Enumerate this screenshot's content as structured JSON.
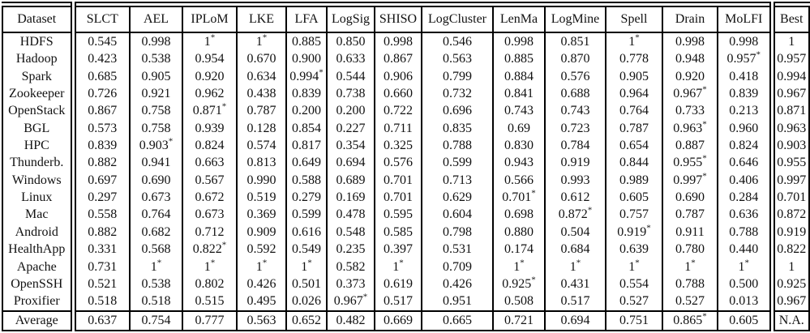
{
  "table": {
    "star_symbol": "*",
    "columns": [
      "Dataset",
      "SLCT",
      "AEL",
      "IPLoM",
      "LKE",
      "LFA",
      "LogSig",
      "SHISO",
      "LogCluster",
      "LenMa",
      "LogMine",
      "Spell",
      "Drain",
      "MoLFI",
      "Best"
    ],
    "rows": [
      {
        "label": "HDFS",
        "cells": [
          [
            "0.545",
            ""
          ],
          [
            "0.998",
            "b"
          ],
          [
            "1",
            "b*"
          ],
          [
            "1",
            "b*"
          ],
          [
            "0.885",
            ""
          ],
          [
            "0.850",
            ""
          ],
          [
            "0.998",
            "b"
          ],
          [
            "0.546",
            ""
          ],
          [
            "0.998",
            "b"
          ],
          [
            "0.851",
            ""
          ],
          [
            "1",
            "b*"
          ],
          [
            "0.998",
            "b"
          ],
          [
            "0.998",
            "b"
          ],
          [
            "1",
            "b"
          ]
        ]
      },
      {
        "label": "Hadoop",
        "cells": [
          [
            "0.423",
            ""
          ],
          [
            "0.538",
            ""
          ],
          [
            "0.954",
            "b"
          ],
          [
            "0.670",
            ""
          ],
          [
            "0.900",
            "b"
          ],
          [
            "0.633",
            ""
          ],
          [
            "0.867",
            ""
          ],
          [
            "0.563",
            ""
          ],
          [
            "0.885",
            ""
          ],
          [
            "0.870",
            ""
          ],
          [
            "0.778",
            ""
          ],
          [
            "0.948",
            "b"
          ],
          [
            "0.957",
            "b*"
          ],
          [
            "0.957",
            "b"
          ]
        ]
      },
      {
        "label": "Spark",
        "cells": [
          [
            "0.685",
            ""
          ],
          [
            "0.905",
            "b"
          ],
          [
            "0.920",
            "b"
          ],
          [
            "0.634",
            ""
          ],
          [
            "0.994",
            "b*"
          ],
          [
            "0.544",
            ""
          ],
          [
            "0.906",
            "b"
          ],
          [
            "0.799",
            ""
          ],
          [
            "0.884",
            ""
          ],
          [
            "0.576",
            ""
          ],
          [
            "0.905",
            "b"
          ],
          [
            "0.920",
            "b"
          ],
          [
            "0.418",
            ""
          ],
          [
            "0.994",
            "b"
          ]
        ]
      },
      {
        "label": "Zookeeper",
        "cells": [
          [
            "0.726",
            ""
          ],
          [
            "0.921",
            "b"
          ],
          [
            "0.962",
            "b"
          ],
          [
            "0.438",
            ""
          ],
          [
            "0.839",
            ""
          ],
          [
            "0.738",
            ""
          ],
          [
            "0.660",
            ""
          ],
          [
            "0.732",
            ""
          ],
          [
            "0.841",
            ""
          ],
          [
            "0.688",
            ""
          ],
          [
            "0.964",
            "b"
          ],
          [
            "0.967",
            "b*"
          ],
          [
            "0.839",
            ""
          ],
          [
            "0.967",
            "b"
          ]
        ]
      },
      {
        "label": "OpenStack",
        "cells": [
          [
            "0.867",
            ""
          ],
          [
            "0.758",
            ""
          ],
          [
            "0.871",
            "*"
          ],
          [
            "0.787",
            ""
          ],
          [
            "0.200",
            ""
          ],
          [
            "0.200",
            ""
          ],
          [
            "0.722",
            ""
          ],
          [
            "0.696",
            ""
          ],
          [
            "0.743",
            ""
          ],
          [
            "0.743",
            ""
          ],
          [
            "0.764",
            ""
          ],
          [
            "0.733",
            ""
          ],
          [
            "0.213",
            ""
          ],
          [
            "0.871",
            ""
          ]
        ]
      },
      {
        "label": "BGL",
        "cells": [
          [
            "0.573",
            ""
          ],
          [
            "0.758",
            ""
          ],
          [
            "0.939",
            "b"
          ],
          [
            "0.128",
            ""
          ],
          [
            "0.854",
            ""
          ],
          [
            "0.227",
            ""
          ],
          [
            "0.711",
            ""
          ],
          [
            "0.835",
            ""
          ],
          [
            "0.69",
            ""
          ],
          [
            "0.723",
            ""
          ],
          [
            "0.787",
            ""
          ],
          [
            "0.963",
            "b*"
          ],
          [
            "0.960",
            "b"
          ],
          [
            "0.963",
            "b"
          ]
        ]
      },
      {
        "label": "HPC",
        "cells": [
          [
            "0.839",
            ""
          ],
          [
            "0.903",
            "b*"
          ],
          [
            "0.824",
            ""
          ],
          [
            "0.574",
            ""
          ],
          [
            "0.817",
            ""
          ],
          [
            "0.354",
            ""
          ],
          [
            "0.325",
            ""
          ],
          [
            "0.788",
            ""
          ],
          [
            "0.830",
            ""
          ],
          [
            "0.784",
            ""
          ],
          [
            "0.654",
            ""
          ],
          [
            "0.887",
            ""
          ],
          [
            "0.824",
            ""
          ],
          [
            "0.903",
            "b"
          ]
        ]
      },
      {
        "label": "Thunderb.",
        "cells": [
          [
            "0.882",
            ""
          ],
          [
            "0.941",
            "b"
          ],
          [
            "0.663",
            ""
          ],
          [
            "0.813",
            ""
          ],
          [
            "0.649",
            ""
          ],
          [
            "0.694",
            ""
          ],
          [
            "0.576",
            ""
          ],
          [
            "0.599",
            ""
          ],
          [
            "0.943",
            "b"
          ],
          [
            "0.919",
            "b"
          ],
          [
            "0.844",
            ""
          ],
          [
            "0.955",
            "b*"
          ],
          [
            "0.646",
            ""
          ],
          [
            "0.955",
            "b"
          ]
        ]
      },
      {
        "label": "Windows",
        "cells": [
          [
            "0.697",
            ""
          ],
          [
            "0.690",
            ""
          ],
          [
            "0.567",
            ""
          ],
          [
            "0.990",
            "b"
          ],
          [
            "0.588",
            ""
          ],
          [
            "0.689",
            ""
          ],
          [
            "0.701",
            ""
          ],
          [
            "0.713",
            ""
          ],
          [
            "0.566",
            ""
          ],
          [
            "0.993",
            "b"
          ],
          [
            "0.989",
            "b"
          ],
          [
            "0.997",
            "b*"
          ],
          [
            "0.406",
            ""
          ],
          [
            "0.997",
            "b"
          ]
        ]
      },
      {
        "label": "Linux",
        "cells": [
          [
            "0.297",
            ""
          ],
          [
            "0.673",
            ""
          ],
          [
            "0.672",
            ""
          ],
          [
            "0.519",
            ""
          ],
          [
            "0.279",
            ""
          ],
          [
            "0.169",
            ""
          ],
          [
            "0.701",
            ""
          ],
          [
            "0.629",
            ""
          ],
          [
            "0.701",
            "*"
          ],
          [
            "0.612",
            ""
          ],
          [
            "0.605",
            ""
          ],
          [
            "0.690",
            ""
          ],
          [
            "0.284",
            ""
          ],
          [
            "0.701",
            ""
          ]
        ]
      },
      {
        "label": "Mac",
        "cells": [
          [
            "0.558",
            ""
          ],
          [
            "0.764",
            ""
          ],
          [
            "0.673",
            ""
          ],
          [
            "0.369",
            ""
          ],
          [
            "0.599",
            ""
          ],
          [
            "0.478",
            ""
          ],
          [
            "0.595",
            ""
          ],
          [
            "0.604",
            ""
          ],
          [
            "0.698",
            ""
          ],
          [
            "0.872",
            "*"
          ],
          [
            "0.757",
            ""
          ],
          [
            "0.787",
            ""
          ],
          [
            "0.636",
            ""
          ],
          [
            "0.872",
            ""
          ]
        ]
      },
      {
        "label": "Android",
        "cells": [
          [
            "0.882",
            ""
          ],
          [
            "0.682",
            ""
          ],
          [
            "0.712",
            ""
          ],
          [
            "0.909",
            "b"
          ],
          [
            "0.616",
            ""
          ],
          [
            "0.548",
            ""
          ],
          [
            "0.585",
            ""
          ],
          [
            "0.798",
            ""
          ],
          [
            "0.880",
            ""
          ],
          [
            "0.504",
            ""
          ],
          [
            "0.919",
            "b*"
          ],
          [
            "0.911",
            "b"
          ],
          [
            "0.788",
            ""
          ],
          [
            "0.919",
            "b"
          ]
        ]
      },
      {
        "label": "HealthApp",
        "cells": [
          [
            "0.331",
            ""
          ],
          [
            "0.568",
            ""
          ],
          [
            "0.822",
            "*"
          ],
          [
            "0.592",
            ""
          ],
          [
            "0.549",
            ""
          ],
          [
            "0.235",
            ""
          ],
          [
            "0.397",
            ""
          ],
          [
            "0.531",
            ""
          ],
          [
            "0.174",
            ""
          ],
          [
            "0.684",
            ""
          ],
          [
            "0.639",
            ""
          ],
          [
            "0.780",
            ""
          ],
          [
            "0.440",
            ""
          ],
          [
            "0.822",
            ""
          ]
        ]
      },
      {
        "label": "Apache",
        "cells": [
          [
            "0.731",
            ""
          ],
          [
            "1",
            "b*"
          ],
          [
            "1",
            "b*"
          ],
          [
            "1",
            "b*"
          ],
          [
            "1",
            "b*"
          ],
          [
            "0.582",
            ""
          ],
          [
            "1",
            "b*"
          ],
          [
            "0.709",
            ""
          ],
          [
            "1",
            "b*"
          ],
          [
            "1",
            "b*"
          ],
          [
            "1",
            "b*"
          ],
          [
            "1",
            "b*"
          ],
          [
            "1",
            "b*"
          ],
          [
            "1",
            "b"
          ]
        ]
      },
      {
        "label": "OpenSSH",
        "cells": [
          [
            "0.521",
            ""
          ],
          [
            "0.538",
            ""
          ],
          [
            "0.802",
            ""
          ],
          [
            "0.426",
            ""
          ],
          [
            "0.501",
            ""
          ],
          [
            "0.373",
            ""
          ],
          [
            "0.619",
            ""
          ],
          [
            "0.426",
            ""
          ],
          [
            "0.925",
            "b*"
          ],
          [
            "0.431",
            ""
          ],
          [
            "0.554",
            ""
          ],
          [
            "0.788",
            ""
          ],
          [
            "0.500",
            ""
          ],
          [
            "0.925",
            "b"
          ]
        ]
      },
      {
        "label": "Proxifier",
        "cells": [
          [
            "0.518",
            ""
          ],
          [
            "0.518",
            ""
          ],
          [
            "0.515",
            ""
          ],
          [
            "0.495",
            ""
          ],
          [
            "0.026",
            ""
          ],
          [
            "0.967",
            "b*"
          ],
          [
            "0.517",
            ""
          ],
          [
            "0.951",
            "b"
          ],
          [
            "0.508",
            ""
          ],
          [
            "0.517",
            ""
          ],
          [
            "0.527",
            ""
          ],
          [
            "0.527",
            ""
          ],
          [
            "0.013",
            ""
          ],
          [
            "0.967",
            "b"
          ]
        ]
      },
      {
        "label": "Average",
        "average": true,
        "cells": [
          [
            "0.637",
            "b"
          ],
          [
            "0.754",
            "b"
          ],
          [
            "0.777",
            "b"
          ],
          [
            "0.563",
            "b"
          ],
          [
            "0.652",
            "b"
          ],
          [
            "0.482",
            "b"
          ],
          [
            "0.669",
            "b"
          ],
          [
            "0.665",
            "b"
          ],
          [
            "0.721",
            "b"
          ],
          [
            "0.694",
            "b"
          ],
          [
            "0.751",
            "b"
          ],
          [
            "0.865",
            "b*"
          ],
          [
            "0.605",
            "b"
          ],
          [
            "N.A.",
            ""
          ]
        ]
      }
    ]
  },
  "colors": {
    "text": "#111111",
    "border": "#000000",
    "background": "#ffffff"
  }
}
